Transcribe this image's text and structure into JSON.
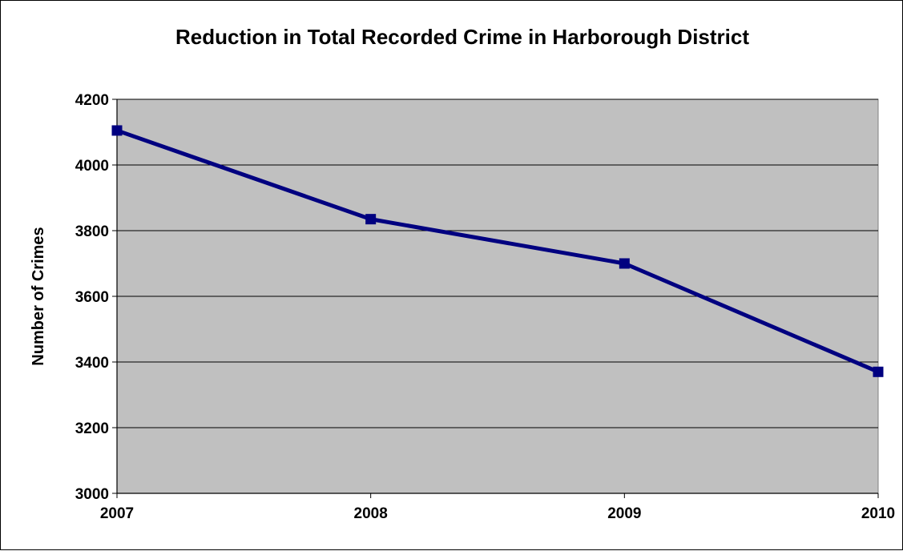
{
  "chart_data": {
    "type": "line",
    "title": "Reduction in Total Recorded Crime in Harborough District",
    "xlabel": "",
    "ylabel": "Number of Crimes",
    "categories": [
      "2007",
      "2008",
      "2009",
      "2010"
    ],
    "series": [
      {
        "values": [
          4105,
          3835,
          3700,
          3370
        ],
        "color": "#000080",
        "marker": "square"
      }
    ],
    "ylim": [
      3000,
      4200
    ],
    "yticks": [
      3000,
      3200,
      3400,
      3600,
      3800,
      4000,
      4200
    ],
    "grid": true,
    "legend": "none",
    "plot_background": "#c0c0c0"
  }
}
